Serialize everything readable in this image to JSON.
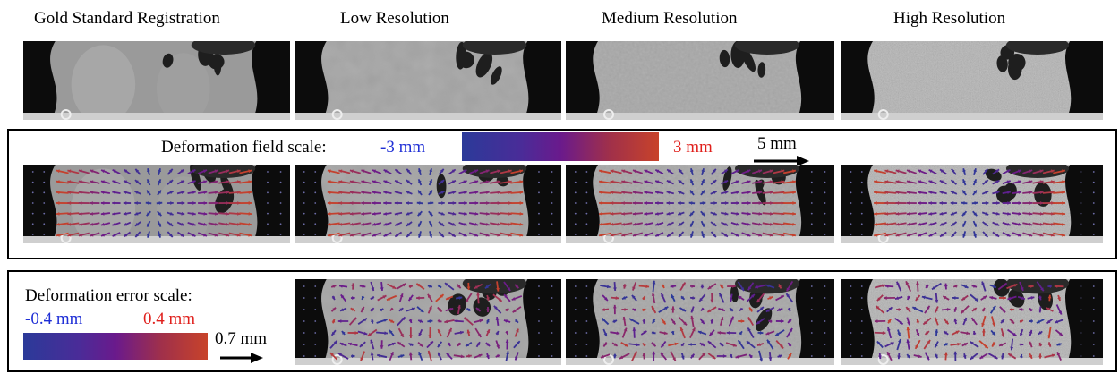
{
  "columns": [
    {
      "title": "Gold Standard Registration"
    },
    {
      "title": "Low Resolution"
    },
    {
      "title": "Medium Resolution"
    },
    {
      "title": "High Resolution"
    }
  ],
  "deformation_field": {
    "label": "Deformation field scale:",
    "min_label": "-3 mm",
    "max_label": "3 mm",
    "arrow_label": "5 mm",
    "colors": {
      "low": "#2b3a99",
      "mid": "#6a1a8c",
      "high": "#c8432a"
    }
  },
  "deformation_error": {
    "label": "Deformation error scale:",
    "min_label": "-0.4 mm",
    "max_label": "0.4 mm",
    "arrow_label": "0.7 mm"
  }
}
